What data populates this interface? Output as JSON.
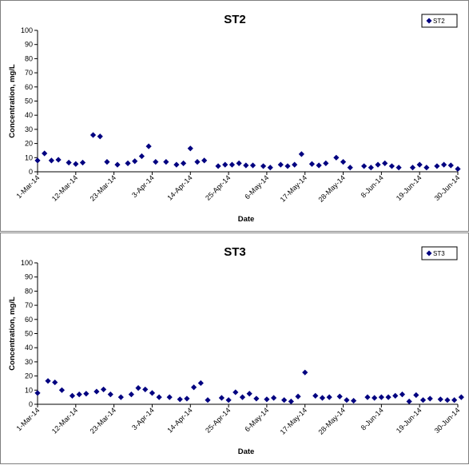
{
  "chart_data": [
    {
      "type": "scatter",
      "title": "ST2",
      "xlabel": "Date",
      "ylabel": "Concentration, mg/L",
      "ylim": [
        0,
        100
      ],
      "yticks": [
        0,
        10,
        20,
        30,
        40,
        50,
        60,
        70,
        80,
        90,
        100
      ],
      "xlim": [
        "2014-03-01",
        "2014-06-30"
      ],
      "xtick_labels": [
        "1-Mar-14",
        "12-Mar-14",
        "23-Mar-14",
        "3-Apr-14",
        "14-Apr-14",
        "25-Apr-14",
        "6-May-14",
        "17-May-14",
        "28-May-14",
        "8-Jun-14",
        "19-Jun-14",
        "30-Jun-14"
      ],
      "legend": "top-right",
      "grid": false,
      "marker": "diamond",
      "color": "#000080",
      "series": [
        {
          "name": "ST2",
          "x": [
            "2014-03-01",
            "2014-03-03",
            "2014-03-05",
            "2014-03-07",
            "2014-03-10",
            "2014-03-12",
            "2014-03-14",
            "2014-03-17",
            "2014-03-19",
            "2014-03-21",
            "2014-03-24",
            "2014-03-27",
            "2014-03-29",
            "2014-03-31",
            "2014-04-02",
            "2014-04-04",
            "2014-04-07",
            "2014-04-10",
            "2014-04-12",
            "2014-04-14",
            "2014-04-16",
            "2014-04-18",
            "2014-04-22",
            "2014-04-24",
            "2014-04-26",
            "2014-04-28",
            "2014-04-30",
            "2014-05-02",
            "2014-05-05",
            "2014-05-07",
            "2014-05-10",
            "2014-05-12",
            "2014-05-14",
            "2014-05-16",
            "2014-05-19",
            "2014-05-21",
            "2014-05-23",
            "2014-05-26",
            "2014-05-28",
            "2014-05-30",
            "2014-06-03",
            "2014-06-05",
            "2014-06-07",
            "2014-06-09",
            "2014-06-11",
            "2014-06-13",
            "2014-06-17",
            "2014-06-19",
            "2014-06-21",
            "2014-06-24",
            "2014-06-26",
            "2014-06-28",
            "2014-06-30"
          ],
          "values": [
            8,
            13,
            8,
            8.5,
            6.5,
            5.5,
            6.5,
            26,
            25,
            7,
            5,
            6,
            7.5,
            11,
            18,
            7,
            7,
            5,
            6,
            16.5,
            7,
            8,
            4,
            5,
            5,
            6,
            4.5,
            4.5,
            4,
            3,
            5,
            4,
            5,
            12.5,
            5.5,
            4.5,
            6,
            10,
            7,
            3,
            4,
            3,
            5,
            6,
            4,
            3,
            3,
            5,
            3,
            4,
            5,
            4.5,
            2
          ]
        }
      ]
    },
    {
      "type": "scatter",
      "title": "ST3",
      "xlabel": "Date",
      "ylabel": "Concentration, mg/L",
      "ylim": [
        0,
        100
      ],
      "yticks": [
        0,
        10,
        20,
        30,
        40,
        50,
        60,
        70,
        80,
        90,
        100
      ],
      "xlim": [
        "2014-03-01",
        "2014-06-30"
      ],
      "xtick_labels": [
        "1-Mar-14",
        "12-Mar-14",
        "23-Mar-14",
        "3-Apr-14",
        "14-Apr-14",
        "25-Apr-14",
        "6-May-14",
        "17-May-14",
        "28-May-14",
        "8-Jun-14",
        "19-Jun-14",
        "30-Jun-14"
      ],
      "legend": "top-right",
      "grid": false,
      "marker": "diamond",
      "color": "#000080",
      "series": [
        {
          "name": "ST3",
          "x": [
            "2014-03-01",
            "2014-03-04",
            "2014-03-06",
            "2014-03-08",
            "2014-03-11",
            "2014-03-13",
            "2014-03-15",
            "2014-03-18",
            "2014-03-20",
            "2014-03-22",
            "2014-03-25",
            "2014-03-28",
            "2014-03-30",
            "2014-04-01",
            "2014-04-03",
            "2014-04-05",
            "2014-04-08",
            "2014-04-11",
            "2014-04-13",
            "2014-04-15",
            "2014-04-17",
            "2014-04-19",
            "2014-04-23",
            "2014-04-25",
            "2014-04-27",
            "2014-04-29",
            "2014-05-01",
            "2014-05-03",
            "2014-05-06",
            "2014-05-08",
            "2014-05-11",
            "2014-05-13",
            "2014-05-15",
            "2014-05-17",
            "2014-05-20",
            "2014-05-22",
            "2014-05-24",
            "2014-05-27",
            "2014-05-29",
            "2014-05-31",
            "2014-06-04",
            "2014-06-06",
            "2014-06-08",
            "2014-06-10",
            "2014-06-12",
            "2014-06-14",
            "2014-06-16",
            "2014-06-18",
            "2014-06-20",
            "2014-06-22",
            "2014-06-25",
            "2014-06-27",
            "2014-06-29",
            "2014-07-01"
          ],
          "values": [
            8,
            16.5,
            15.5,
            10,
            6,
            7,
            7.5,
            9,
            10.5,
            7,
            5,
            7,
            11.5,
            10.5,
            8,
            5,
            5,
            3.5,
            4,
            12,
            15,
            3,
            4.5,
            3,
            8.5,
            5,
            7.5,
            4,
            3.5,
            4.5,
            3,
            2,
            5.5,
            22.5,
            6,
            4.5,
            5,
            5.5,
            3,
            2.5,
            5,
            4.5,
            5,
            5,
            6,
            7,
            2,
            6.5,
            3,
            4,
            3.5,
            3,
            3,
            5
          ]
        }
      ]
    }
  ]
}
